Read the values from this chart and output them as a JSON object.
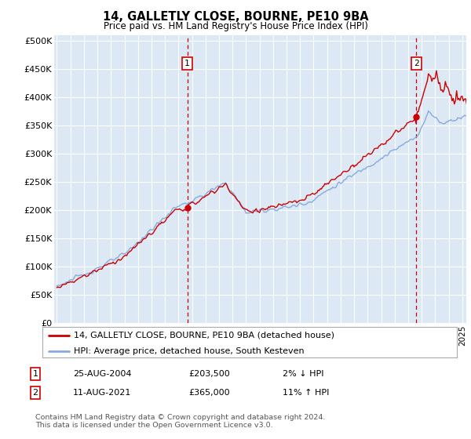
{
  "title": "14, GALLETLY CLOSE, BOURNE, PE10 9BA",
  "subtitle": "Price paid vs. HM Land Registry's House Price Index (HPI)",
  "ylabel_ticks": [
    "£0",
    "£50K",
    "£100K",
    "£150K",
    "£200K",
    "£250K",
    "£300K",
    "£350K",
    "£400K",
    "£450K",
    "£500K"
  ],
  "ytick_values": [
    0,
    50000,
    100000,
    150000,
    200000,
    250000,
    300000,
    350000,
    400000,
    450000,
    500000
  ],
  "ylim": [
    0,
    510000
  ],
  "xlim_start": 1994.8,
  "xlim_end": 2025.3,
  "plot_bg_color": "#dce9f5",
  "grid_color": "#ffffff",
  "sale1_date": 2004.65,
  "sale1_price": 203500,
  "sale1_label": "1",
  "sale2_date": 2021.61,
  "sale2_price": 365000,
  "sale2_label": "2",
  "line_color_red": "#cc0000",
  "line_color_blue": "#88aadd",
  "annotation_box_color": "#cc0000",
  "footer_text": "Contains HM Land Registry data © Crown copyright and database right 2024.\nThis data is licensed under the Open Government Licence v3.0.",
  "legend_label1": "14, GALLETLY CLOSE, BOURNE, PE10 9BA (detached house)",
  "legend_label2": "HPI: Average price, detached house, South Kesteven",
  "table_row1": [
    "1",
    "25-AUG-2004",
    "£203,500",
    "2% ↓ HPI"
  ],
  "table_row2": [
    "2",
    "11-AUG-2021",
    "£365,000",
    "11% ↑ HPI"
  ]
}
